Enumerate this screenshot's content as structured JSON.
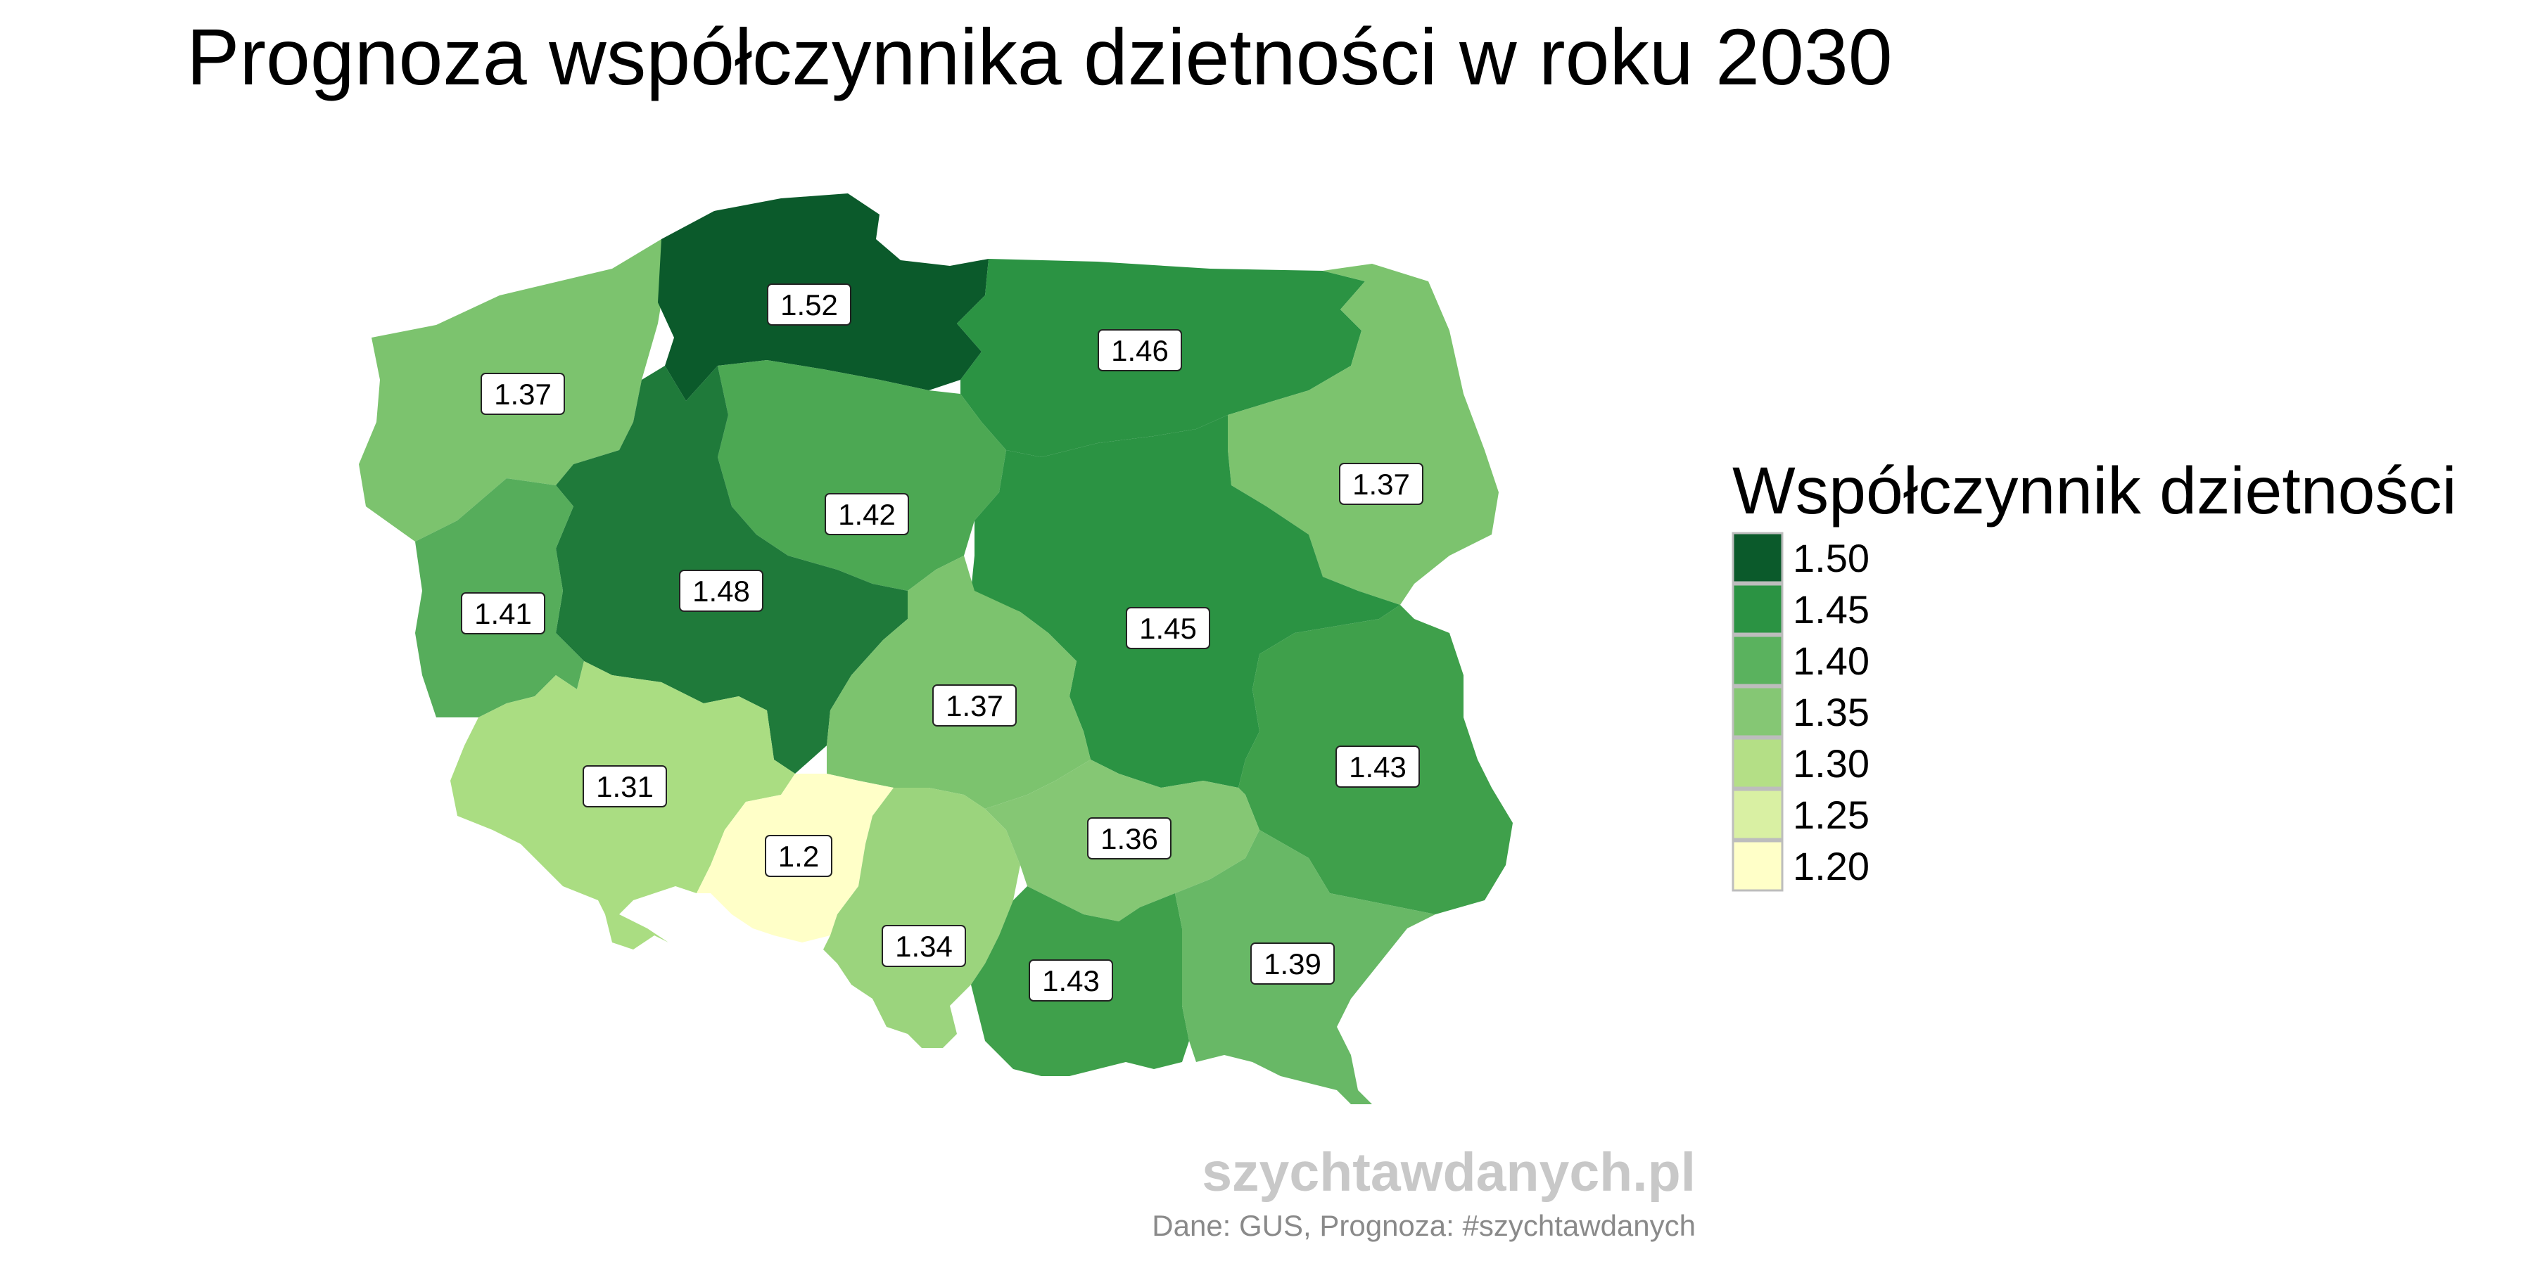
{
  "title": "Prognoza współczynnika dzietności w roku 2030",
  "legend": {
    "title": "Współczynnik dzietności",
    "items": [
      {
        "label": "1.50",
        "color": "#0b5a2b"
      },
      {
        "label": "1.45",
        "color": "#2b9343"
      },
      {
        "label": "1.40",
        "color": "#5ab25e"
      },
      {
        "label": "1.35",
        "color": "#85c774"
      },
      {
        "label": "1.30",
        "color": "#b4df86"
      },
      {
        "label": "1.25",
        "color": "#d9f0a3"
      },
      {
        "label": "1.20",
        "color": "#ffffc8"
      }
    ]
  },
  "regions": [
    {
      "name": "pomorskie",
      "value": 1.52,
      "label": "1.52",
      "color": "#0b5a2b"
    },
    {
      "name": "warmińsko-mazurskie",
      "value": 1.46,
      "label": "1.46",
      "color": "#2b9343"
    },
    {
      "name": "zachodniopomorskie",
      "value": 1.37,
      "label": "1.37",
      "color": "#7cc36e"
    },
    {
      "name": "podlaskie",
      "value": 1.37,
      "label": "1.37",
      "color": "#7cc36e"
    },
    {
      "name": "kujawsko-pomorskie",
      "value": 1.42,
      "label": "1.42",
      "color": "#4ca853"
    },
    {
      "name": "wielkopolskie",
      "value": 1.48,
      "label": "1.48",
      "color": "#1f7a3a"
    },
    {
      "name": "lubuskie",
      "value": 1.41,
      "label": "1.41",
      "color": "#56ad5b"
    },
    {
      "name": "mazowieckie",
      "value": 1.45,
      "label": "1.45",
      "color": "#2b9343"
    },
    {
      "name": "łódzkie",
      "value": 1.37,
      "label": "1.37",
      "color": "#7cc36e"
    },
    {
      "name": "lubelskie",
      "value": 1.43,
      "label": "1.43",
      "color": "#3fa04b"
    },
    {
      "name": "dolnośląskie",
      "value": 1.31,
      "label": "1.31",
      "color": "#aadd82"
    },
    {
      "name": "opolskie",
      "value": 1.2,
      "label": "1.2",
      "color": "#ffffc8"
    },
    {
      "name": "świętokrzyskie",
      "value": 1.36,
      "label": "1.36",
      "color": "#85c774"
    },
    {
      "name": "śląskie",
      "value": 1.34,
      "label": "1.34",
      "color": "#9bd47d"
    },
    {
      "name": "małopolskie",
      "value": 1.43,
      "label": "1.43",
      "color": "#3fa04b"
    },
    {
      "name": "podkarpackie",
      "value": 1.39,
      "label": "1.39",
      "color": "#68b866"
    }
  ],
  "footer": {
    "watermark": "szychtawdanych.pl",
    "source": "Dane: GUS, Prognoza: #szychtawdanych"
  }
}
